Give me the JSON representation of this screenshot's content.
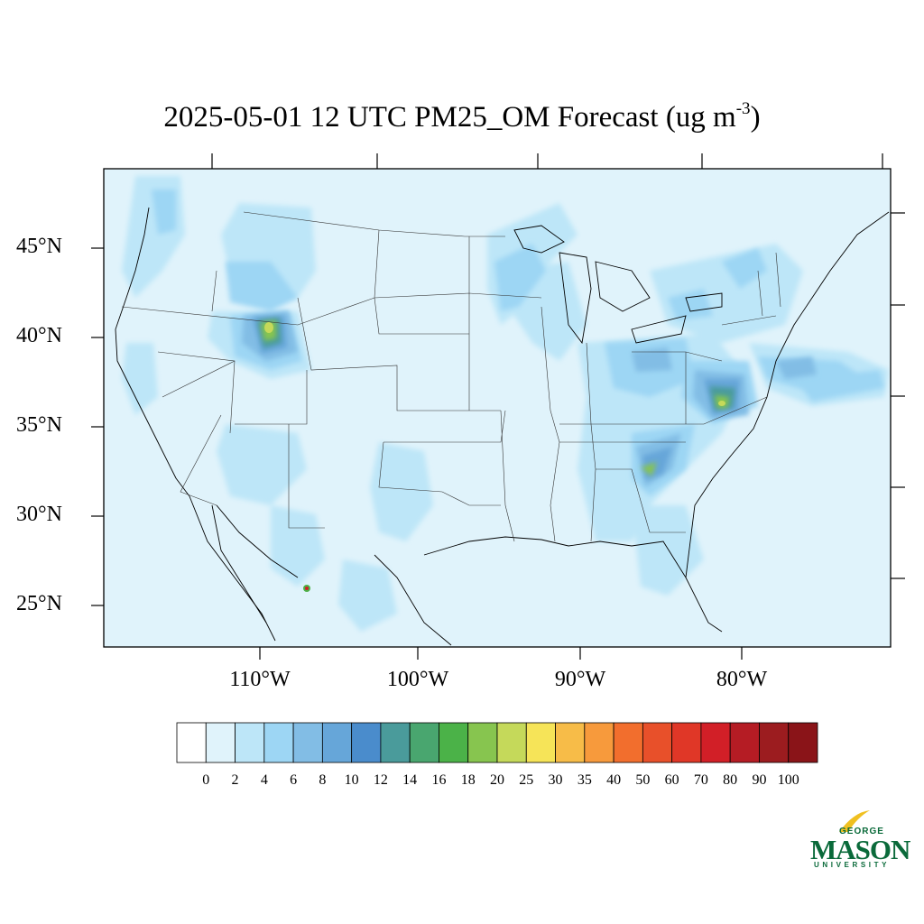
{
  "title": {
    "main": "2025-05-01 12 UTC PM25_OM Forecast (ug m",
    "superscript": "-3",
    "close": ")"
  },
  "lat_labels": [
    "45°N",
    "40°N",
    "35°N",
    "30°N",
    "25°N"
  ],
  "lon_labels": [
    "110°W",
    "100°W",
    "90°W",
    "80°W"
  ],
  "colorbar": {
    "labels": [
      "0",
      "2",
      "4",
      "6",
      "8",
      "10",
      "12",
      "14",
      "16",
      "18",
      "20",
      "25",
      "30",
      "35",
      "40",
      "50",
      "60",
      "70",
      "80",
      "90",
      "100"
    ],
    "colors": [
      "#ffffff",
      "#e0f3fb",
      "#bde6f8",
      "#9dd6f4",
      "#82bde5",
      "#66a6d9",
      "#4a8ccc",
      "#4a9b9b",
      "#49a66f",
      "#4bb248",
      "#87c54f",
      "#c5d95a",
      "#f6e458",
      "#f7bc48",
      "#f79a3c",
      "#f26e2d",
      "#e8502a",
      "#e03727",
      "#d21f27",
      "#b51c24",
      "#9c1c1f",
      "#8a1418"
    ]
  },
  "logo": {
    "line1": "GEORGE",
    "line2": "MASON",
    "line3": "UNIVERSITY",
    "accent": "#f0c020",
    "brand": "#0a6a3a"
  }
}
